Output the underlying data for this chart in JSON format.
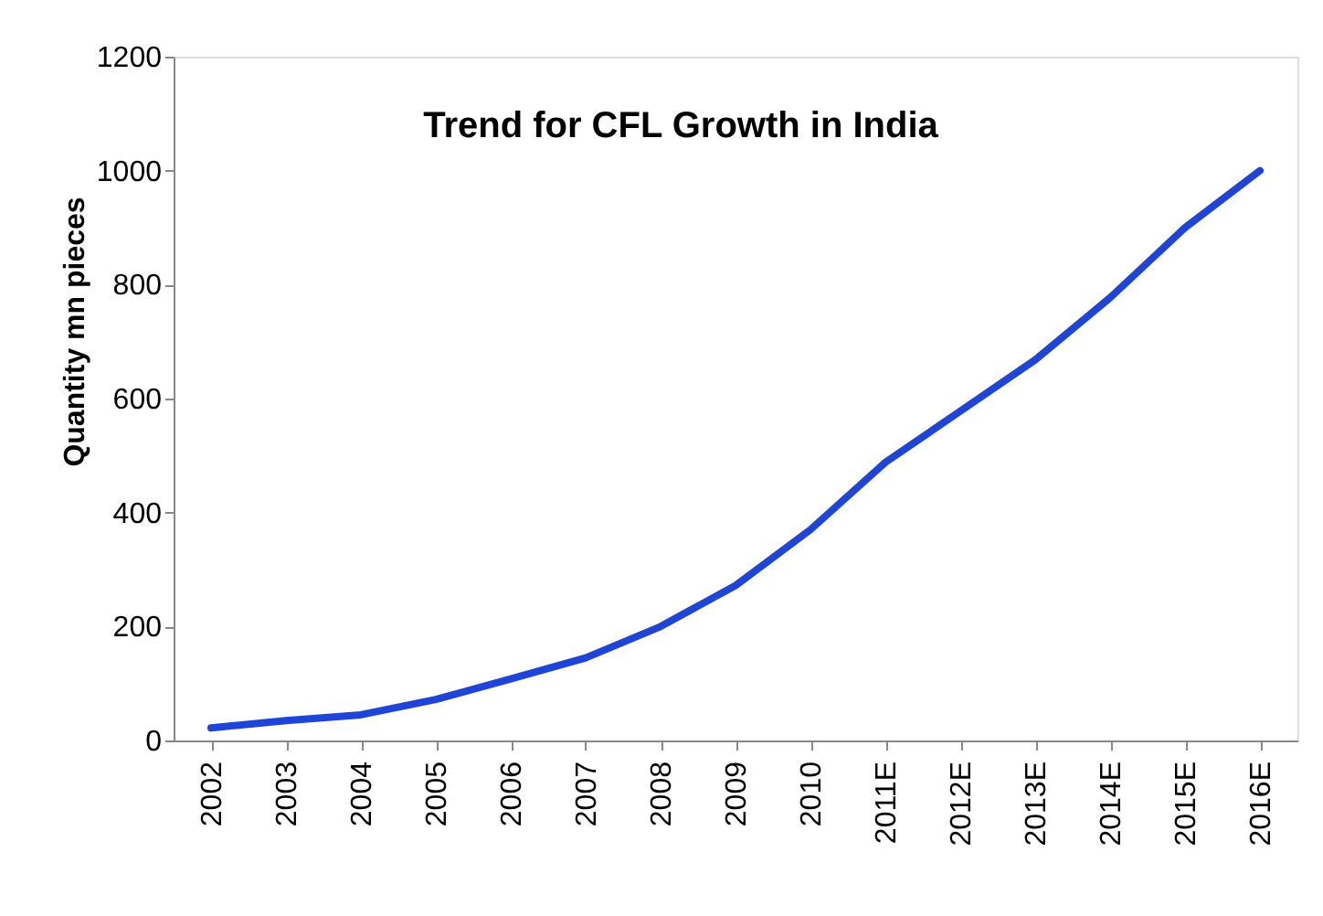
{
  "chart_data": {
    "type": "line",
    "title": "Trend for CFL Growth in India",
    "ylabel": "Quantity mn pieces",
    "categories": [
      "2002",
      "2003",
      "2004",
      "2005",
      "2006",
      "2007",
      "2008",
      "2009",
      "2010",
      "2011E",
      "2012E",
      "2013E",
      "2014E",
      "2015E",
      "2016E"
    ],
    "series": [
      {
        "color": "#1f45d8",
        "values": [
          22,
          35,
          45,
          72,
          108,
          145,
          200,
          272,
          370,
          488,
          578,
          668,
          777,
          900,
          1000
        ]
      }
    ],
    "ylim": [
      0,
      1200
    ],
    "yticks": [
      0,
      200,
      400,
      600,
      800,
      1000,
      1200
    ],
    "grid": false,
    "legend": false,
    "marker": "none",
    "line_style": "solid"
  }
}
